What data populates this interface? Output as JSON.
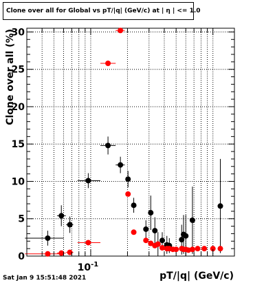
{
  "chart_data": {
    "type": "scatter",
    "title": "Clone  over all for Global vs pT/|q| (GeV/c) at |  η | <= 1.0",
    "xlabel": "pT/|q| (GeV/c)",
    "ylabel": "Clone  over all (%)",
    "x_scale": "log",
    "xlim": [
      0.03,
      1.5
    ],
    "ylim": [
      0,
      30.5
    ],
    "y_ticks": [
      0,
      5,
      10,
      15,
      20,
      25,
      30
    ],
    "x_tick_labels": [
      {
        "value": 0.1,
        "label": "10^-1"
      }
    ],
    "grid": true,
    "series": [
      {
        "color": "#000000",
        "points": [
          {
            "x": 0.0445,
            "y": 2.4,
            "xerr": [
              0.029,
              0.06
            ],
            "yerr": 1.0
          },
          {
            "x": 0.0575,
            "y": 5.4,
            "xerr": [
              0.053,
              0.0625
            ],
            "yerr": 1.4
          },
          {
            "x": 0.0675,
            "y": 4.2,
            "xerr": [
              0.063,
              0.072
            ],
            "yerr": 1.1
          },
          {
            "x": 0.0955,
            "y": 10.1,
            "xerr": [
              0.078,
              0.12
            ],
            "yerr": 1.0
          },
          {
            "x": 0.1385,
            "y": 14.8,
            "xerr": [
              0.12,
              0.16
            ],
            "yerr": 1.2
          },
          {
            "x": 0.175,
            "y": 12.2,
            "xerr": [
              0.16,
              0.19
            ],
            "yerr": 1.1
          },
          {
            "x": 0.202,
            "y": 10.3,
            "xerr": [
              0.195,
              0.21
            ],
            "yerr": 1.1
          },
          {
            "x": 0.225,
            "y": 6.8,
            "xerr": [
              0.215,
              0.235
            ],
            "yerr": 1.0
          },
          {
            "x": 0.283,
            "y": 3.6,
            "xerr": [
              0.275,
              0.29
            ],
            "yerr": 1.2
          },
          {
            "x": 0.31,
            "y": 5.8,
            "xerr": [
              0.3,
              0.32
            ],
            "yerr": 2.3
          },
          {
            "x": 0.335,
            "y": 3.4,
            "xerr": [
              0.325,
              0.345
            ],
            "yerr": 1.8
          },
          {
            "x": 0.355,
            "y": 1.6,
            "xerr": [
              0.345,
              0.365
            ],
            "yerr": 1.6
          },
          {
            "x": 0.385,
            "y": 2.1,
            "xerr": [
              0.37,
              0.4
            ],
            "yerr": 1.1
          },
          {
            "x": 0.42,
            "y": 1.5,
            "xerr": [
              0.405,
              0.43
            ],
            "yerr": 1.2
          },
          {
            "x": 0.44,
            "y": 1.4,
            "xerr": [
              0.43,
              0.45
            ],
            "yerr": 1.0
          },
          {
            "x": 0.555,
            "y": 2.2,
            "xerr": [
              0.545,
              0.565
            ],
            "yerr": 2.0
          },
          {
            "x": 0.575,
            "y": 2.9,
            "xerr": [
              0.565,
              0.585
            ],
            "yerr": 2.6
          },
          {
            "x": 0.6,
            "y": 2.7,
            "xerr": [
              0.59,
              0.61
            ],
            "yerr": 2.8
          },
          {
            "x": 0.68,
            "y": 4.8,
            "xerr": [
              0.665,
              0.695
            ],
            "yerr": 4.5
          },
          {
            "x": 1.15,
            "y": 6.7,
            "xerr": [
              1.1,
              1.2
            ],
            "yerr": 6.3
          }
        ]
      },
      {
        "color": "#ff0000",
        "points": [
          {
            "x": 0.0445,
            "y": 0.3,
            "xerr": [
              0.029,
              0.06
            ],
            "yerr": 0
          },
          {
            "x": 0.0575,
            "y": 0.4,
            "xerr": [
              0.053,
              0.0625
            ],
            "yerr": 0
          },
          {
            "x": 0.0675,
            "y": 0.5,
            "xerr": [
              0.063,
              0.072
            ],
            "yerr": 0
          },
          {
            "x": 0.0955,
            "y": 1.8,
            "xerr": [
              0.078,
              0.12
            ],
            "yerr": 0
          },
          {
            "x": 0.1385,
            "y": 25.8,
            "xerr": [
              0.12,
              0.16
            ],
            "yerr": 0
          },
          {
            "x": 0.175,
            "y": 30.2,
            "xerr": [
              0.16,
              0.19
            ],
            "yerr": 0
          },
          {
            "x": 0.202,
            "y": 8.3,
            "xerr": [
              0.195,
              0.21
            ],
            "yerr": 0
          },
          {
            "x": 0.225,
            "y": 3.2,
            "xerr": [
              0.215,
              0.235
            ],
            "yerr": 0
          },
          {
            "x": 0.283,
            "y": 2.1,
            "xerr": [
              0.275,
              0.29
            ],
            "yerr": 0
          },
          {
            "x": 0.31,
            "y": 1.7,
            "xerr": [
              0.3,
              0.32
            ],
            "yerr": 0
          },
          {
            "x": 0.335,
            "y": 1.4,
            "xerr": [
              0.325,
              0.345
            ],
            "yerr": 0
          },
          {
            "x": 0.355,
            "y": 1.6,
            "xerr": [
              0.345,
              0.365
            ],
            "yerr": 0
          },
          {
            "x": 0.385,
            "y": 1.1,
            "xerr": [
              0.37,
              0.4
            ],
            "yerr": 0
          },
          {
            "x": 0.42,
            "y": 1.0,
            "xerr": [
              0.405,
              0.43
            ],
            "yerr": 0
          },
          {
            "x": 0.44,
            "y": 1.0,
            "xerr": [
              0.43,
              0.45
            ],
            "yerr": 0
          },
          {
            "x": 0.47,
            "y": 0.9,
            "xerr": [
              0.46,
              0.48
            ],
            "yerr": 0
          },
          {
            "x": 0.5,
            "y": 0.9,
            "xerr": [
              0.49,
              0.51
            ],
            "yerr": 0
          },
          {
            "x": 0.555,
            "y": 1.0,
            "xerr": [
              0.545,
              0.565
            ],
            "yerr": 0
          },
          {
            "x": 0.575,
            "y": 0.9,
            "xerr": [
              0.565,
              0.585
            ],
            "yerr": 0
          },
          {
            "x": 0.6,
            "y": 0.9,
            "xerr": [
              0.59,
              0.61
            ],
            "yerr": 0
          },
          {
            "x": 0.63,
            "y": 0.8,
            "xerr": [
              0.62,
              0.64
            ],
            "yerr": 0
          },
          {
            "x": 0.68,
            "y": 0.9,
            "xerr": [
              0.665,
              0.695
            ],
            "yerr": 0
          },
          {
            "x": 0.75,
            "y": 1.0,
            "xerr": [
              0.72,
              0.78
            ],
            "yerr": 0
          },
          {
            "x": 0.85,
            "y": 1.0,
            "xerr": [
              0.8,
              0.9
            ],
            "yerr": 0
          },
          {
            "x": 1.0,
            "y": 1.0,
            "xerr": [
              0.95,
              1.05
            ],
            "yerr": 0
          },
          {
            "x": 1.15,
            "y": 1.0,
            "xerr": [
              1.1,
              1.2
            ],
            "yerr": 0
          }
        ]
      }
    ]
  },
  "footer": {
    "timestamp": "Sat Jan  9 15:51:48 2021"
  }
}
